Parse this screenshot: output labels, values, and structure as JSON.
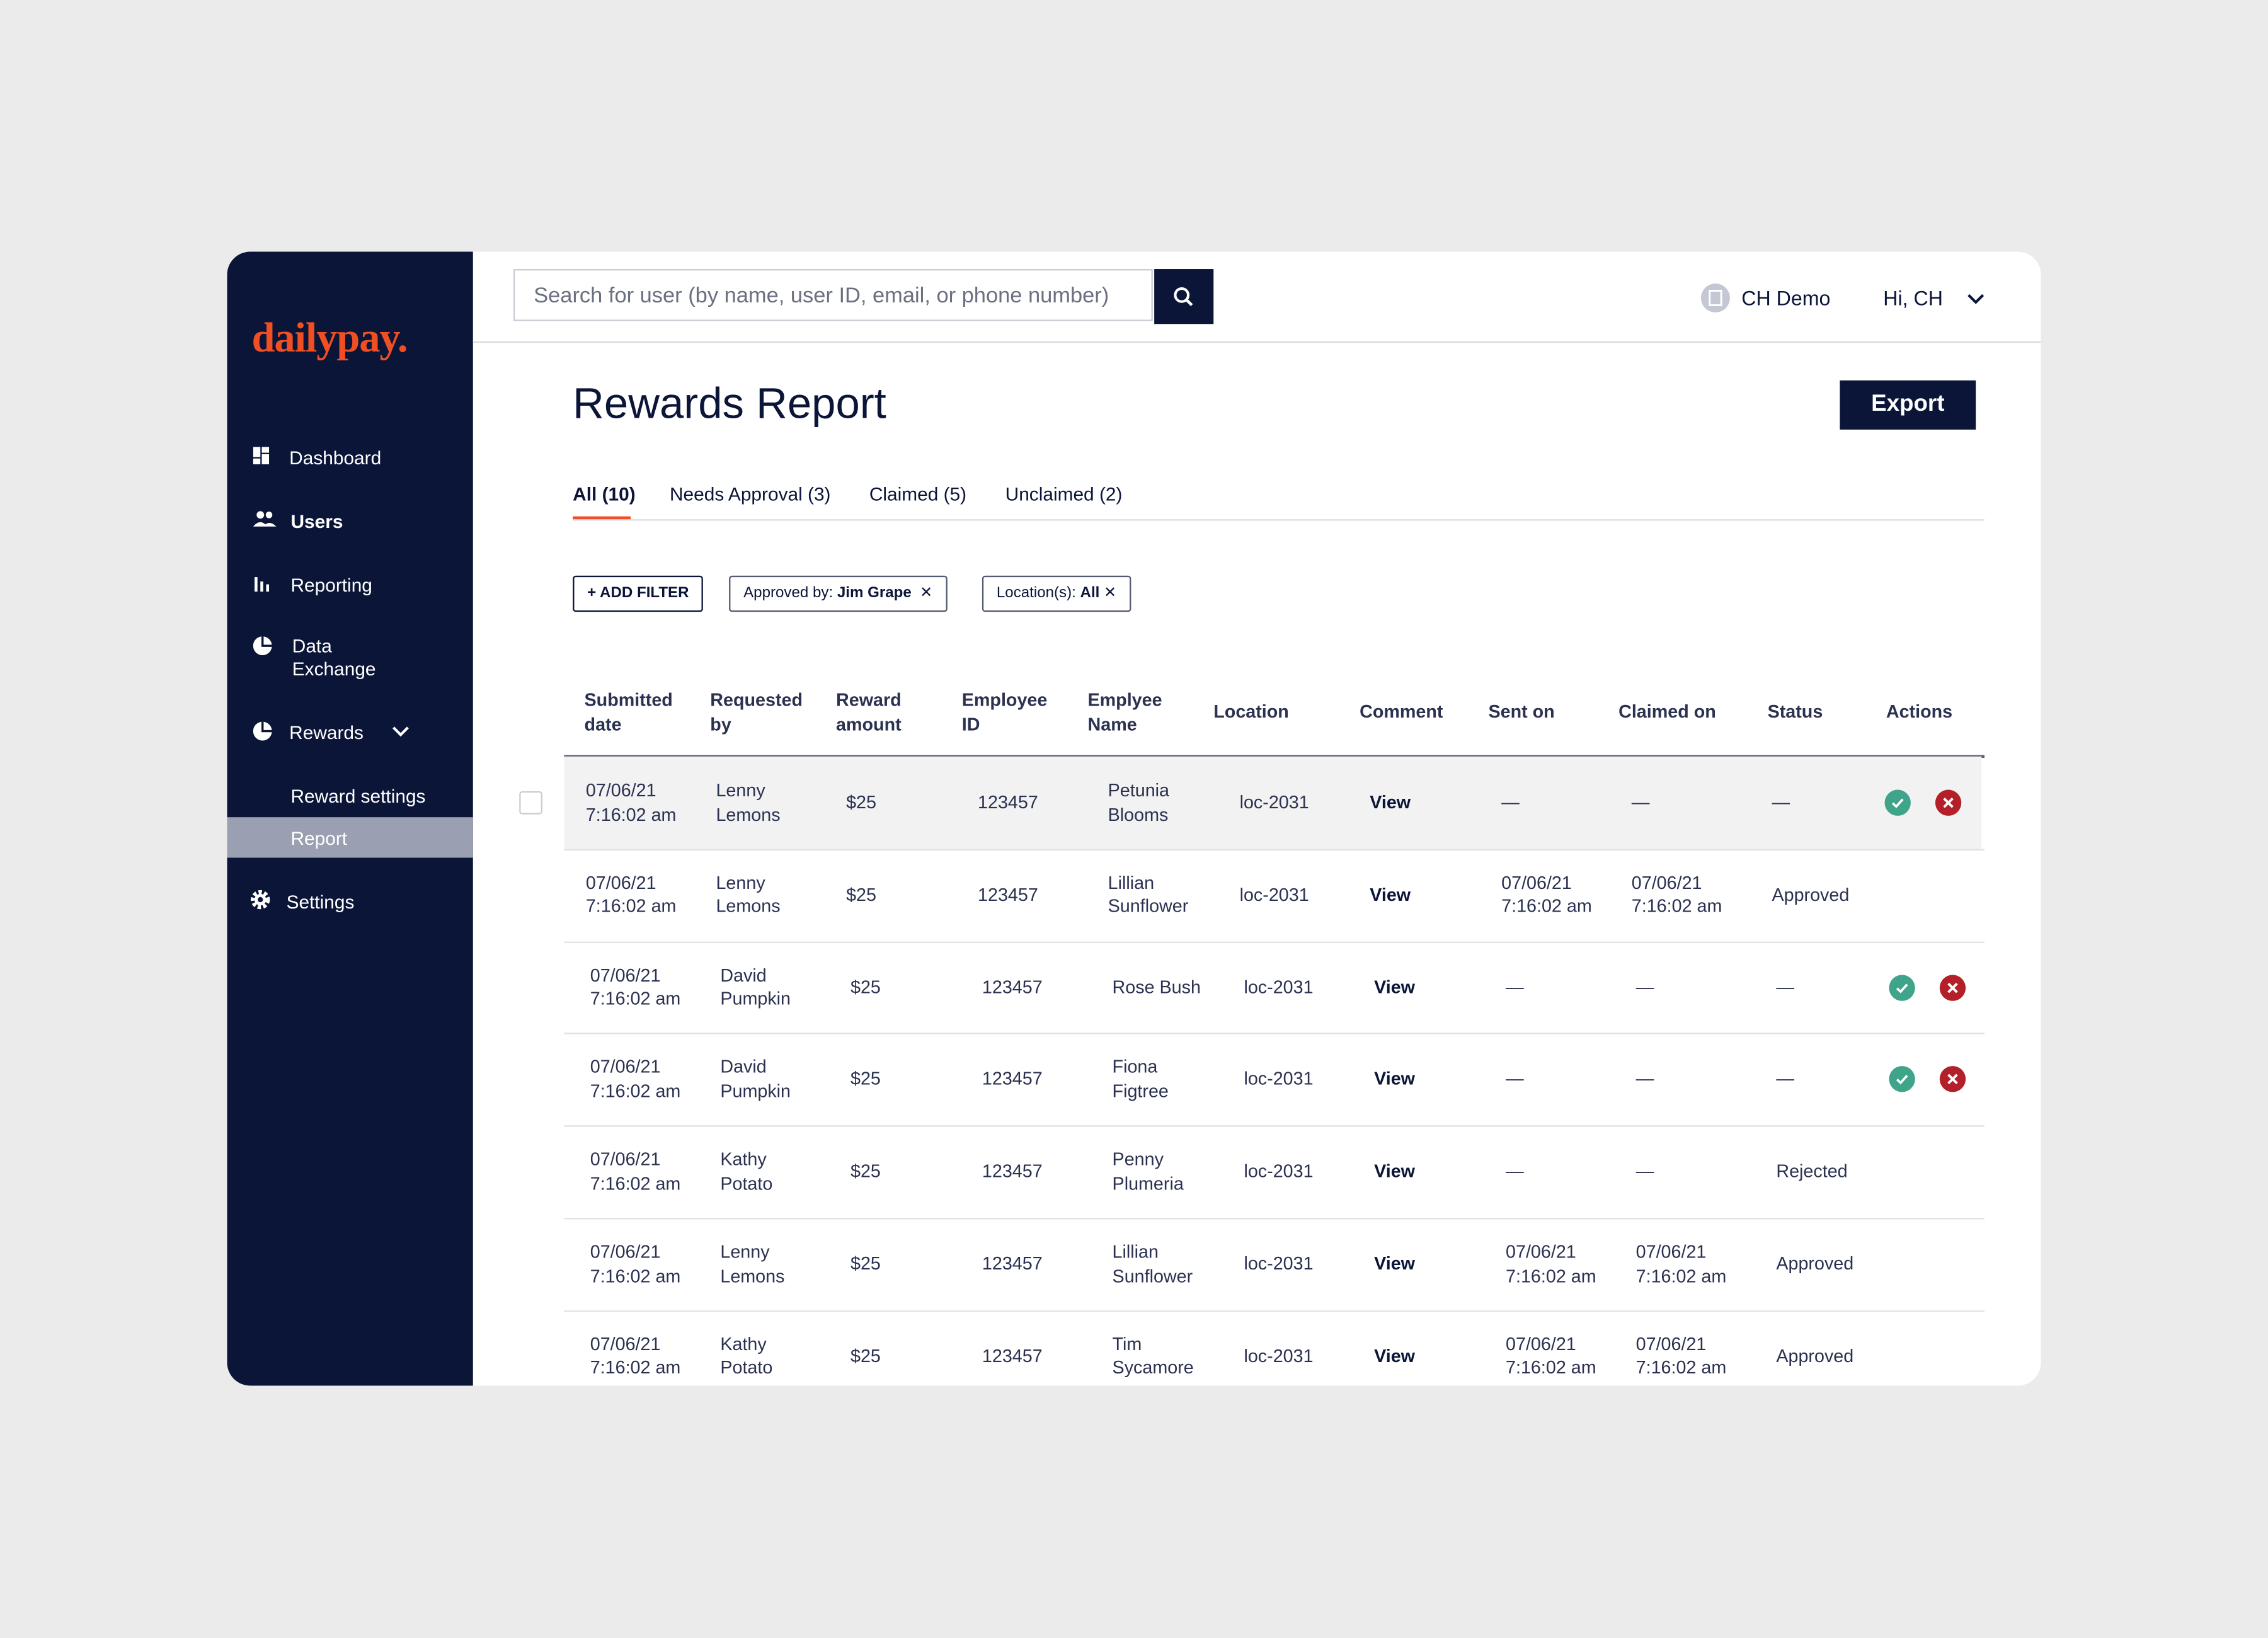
{
  "sidebar": {
    "logo": "dailypay.",
    "items": [
      "Dashboard",
      "Users",
      "Reporting",
      "Data Exchange",
      "Rewards",
      "Reward settings",
      "Report",
      "Settings"
    ]
  },
  "topbar": {
    "search_placeholder": "Search for user (by name, user ID, email, or phone number)",
    "company": "CH Demo",
    "greeting": "Hi, CH"
  },
  "page": {
    "title": "Rewards Report",
    "export": "Export",
    "tabs": [
      "All (10)",
      "Needs Approval (3)",
      "Claimed (5)",
      "Unclaimed (2)"
    ],
    "filters": {
      "add": "ADD FILTER",
      "chips": [
        {
          "label": "Approved by:",
          "value": "Jim Grape"
        },
        {
          "label": "Location(s):",
          "value": "All"
        }
      ]
    }
  },
  "table": {
    "headers": [
      "Submitted date",
      "Requested by",
      "Reward amount",
      "Employee ID",
      "Emplyee Name",
      "Location",
      "Comment",
      "Sent on",
      "Claimed on",
      "Status",
      "Actions"
    ],
    "rows": [
      {
        "cells": [
          "07/06/21 7:16:02 am",
          "Lenny Lemons",
          "$25",
          "123457",
          "Petunia Blooms",
          "loc-2031",
          "View",
          "—",
          "—",
          "—"
        ],
        "actions": true
      },
      {
        "cells": [
          "07/06/21 7:16:02 am",
          "Lenny Lemons",
          "$25",
          "123457",
          "Lillian Sunflower",
          "loc-2031",
          "View",
          "07/06/21 7:16:02 am",
          "07/06/21 7:16:02 am",
          "Approved"
        ],
        "actions": false
      },
      {
        "cells": [
          "07/06/21 7:16:02 am",
          "David Pumpkin",
          "$25",
          "123457",
          "Rose Bush",
          "loc-2031",
          "View",
          "—",
          "—",
          "—"
        ],
        "actions": true
      },
      {
        "cells": [
          "07/06/21 7:16:02 am",
          "David Pumpkin",
          "$25",
          "123457",
          "Fiona Figtree",
          "loc-2031",
          "View",
          "—",
          "—",
          "—"
        ],
        "actions": true
      },
      {
        "cells": [
          "07/06/21 7:16:02 am",
          "Kathy Potato",
          "$25",
          "123457",
          "Penny Plumeria",
          "loc-2031",
          "View",
          "—",
          "—",
          "Rejected"
        ],
        "actions": false
      },
      {
        "cells": [
          "07/06/21 7:16:02 am",
          "Lenny Lemons",
          "$25",
          "123457",
          "Lillian Sunflower",
          "loc-2031",
          "View",
          "07/06/21 7:16:02 am",
          "07/06/21 7:16:02 am",
          "Approved"
        ],
        "actions": false
      },
      {
        "cells": [
          "07/06/21 7:16:02 am",
          "Kathy Potato",
          "$25",
          "123457",
          "Tim Sycamore",
          "loc-2031",
          "View",
          "07/06/21 7:16:02 am",
          "07/06/21 7:16:02 am",
          "Approved"
        ],
        "actions": false
      }
    ]
  }
}
